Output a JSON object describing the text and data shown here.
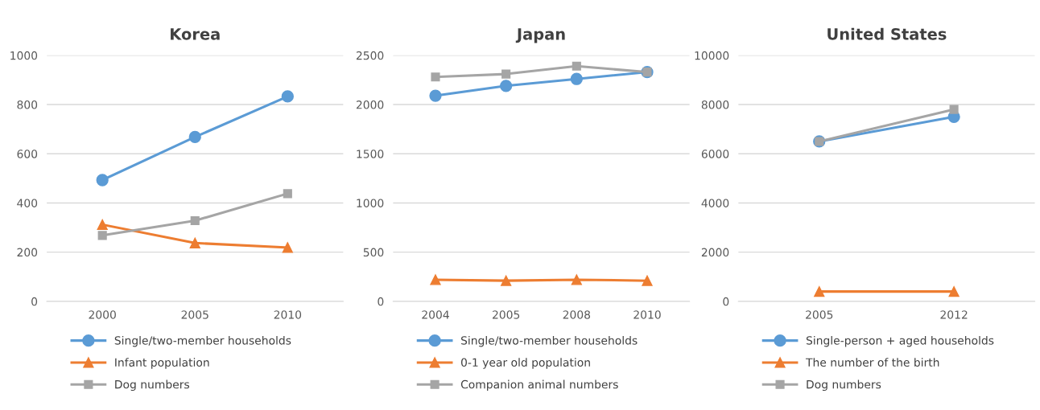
{
  "chart_data": [
    {
      "type": "line",
      "title": "Korea",
      "categories": [
        "2000",
        "2005",
        "2010"
      ],
      "ylim": [
        0,
        1000
      ],
      "yticks": [
        0,
        200,
        400,
        600,
        800,
        1000
      ],
      "grid": "y",
      "legend": "bottom",
      "series": [
        {
          "name": "Single/two-member households",
          "color": "#5b9bd5",
          "marker": "circle",
          "values": [
            493,
            668,
            833
          ]
        },
        {
          "name": "Infant population",
          "color": "#ed7d31",
          "marker": "triangle",
          "values": [
            312,
            237,
            219
          ]
        },
        {
          "name": "Dog numbers",
          "color": "#a5a5a5",
          "marker": "square",
          "values": [
            268,
            328,
            438
          ]
        }
      ]
    },
    {
      "type": "line",
      "title": "Japan",
      "categories": [
        "2004",
        "2005",
        "2008",
        "2010"
      ],
      "ylim": [
        0,
        2500
      ],
      "yticks": [
        0,
        500,
        1000,
        1500,
        2000,
        2500
      ],
      "grid": "y",
      "legend": "bottom",
      "series": [
        {
          "name": "Single/two-member households",
          "color": "#5b9bd5",
          "marker": "circle",
          "values": [
            2090,
            2190,
            2260,
            2330
          ]
        },
        {
          "name": "0-1 year old population",
          "color": "#ed7d31",
          "marker": "triangle",
          "values": [
            220,
            210,
            220,
            210
          ]
        },
        {
          "name": "Companion animal numbers",
          "color": "#a5a5a5",
          "marker": "square",
          "values": [
            2280,
            2310,
            2390,
            2330
          ]
        }
      ]
    },
    {
      "type": "line",
      "title": "United States",
      "categories": [
        "2005",
        "2012"
      ],
      "ylim": [
        0,
        10000
      ],
      "yticks": [
        0,
        2000,
        4000,
        6000,
        8000,
        10000
      ],
      "grid": "y",
      "legend": "bottom",
      "series": [
        {
          "name": "Single-person + aged households",
          "color": "#5b9bd5",
          "marker": "circle",
          "values": [
            6500,
            7500
          ]
        },
        {
          "name": "The number of the birth",
          "color": "#ed7d31",
          "marker": "triangle",
          "values": [
            400,
            400
          ]
        },
        {
          "name": "Dog numbers",
          "color": "#a5a5a5",
          "marker": "square",
          "values": [
            6500,
            7800
          ]
        }
      ]
    }
  ]
}
